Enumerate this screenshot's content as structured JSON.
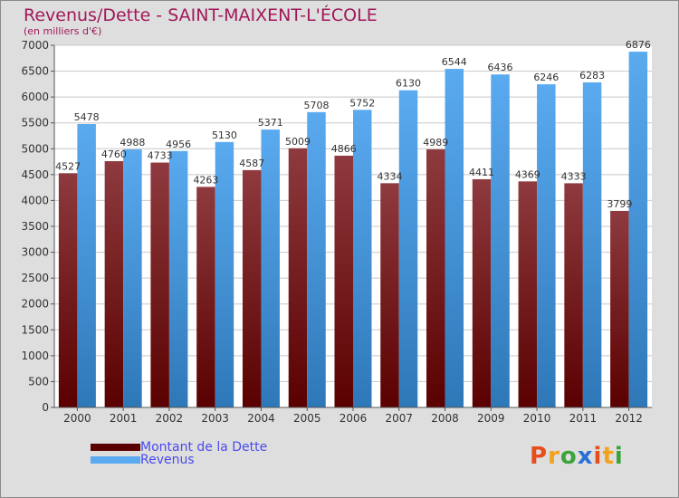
{
  "header": {
    "title": "Revenus/Dette - SAINT-MAIXENT-L'ÉCOLE",
    "subtitle": "(en milliers d'€)"
  },
  "legend": {
    "debt_label": "Montant de la Dette",
    "revenue_label": "Revenus"
  },
  "logo": {
    "text": "Proxiti"
  },
  "colors": {
    "debt_top": "#8e3a3e",
    "debt_bottom": "#5a0000",
    "revenue_top": "#5aaaf0",
    "revenue_bottom": "#2e78b8",
    "plot_bg": "#ffffff",
    "grid": "#c8c8c8",
    "logo_letters": [
      "#e84e1b",
      "#f3a21b",
      "#3aa33a",
      "#2a6fd6",
      "#e84e1b",
      "#f3a21b",
      "#3aa33a"
    ]
  },
  "chart_data": {
    "type": "bar",
    "title": "Revenus/Dette - SAINT-MAIXENT-L'ÉCOLE",
    "subtitle": "(en milliers d'€)",
    "xlabel": "",
    "ylabel": "",
    "ylim": [
      0,
      7000
    ],
    "yticks": [
      0,
      500,
      1000,
      1500,
      2000,
      2500,
      3000,
      3500,
      4000,
      4500,
      5000,
      5500,
      6000,
      6500,
      7000
    ],
    "grid": true,
    "legend_position": "bottom-left",
    "categories": [
      "2000",
      "2001",
      "2002",
      "2003",
      "2004",
      "2005",
      "2006",
      "2007",
      "2008",
      "2009",
      "2010",
      "2011",
      "2012"
    ],
    "series": [
      {
        "name": "Montant de la Dette",
        "values": [
          4527,
          4760,
          4733,
          4263,
          4587,
          5009,
          4866,
          4334,
          4989,
          4411,
          4369,
          4333,
          3799
        ]
      },
      {
        "name": "Revenus",
        "values": [
          5478,
          4988,
          4956,
          5130,
          5371,
          5708,
          5752,
          6130,
          6544,
          6436,
          6246,
          6283,
          6876
        ]
      }
    ]
  }
}
